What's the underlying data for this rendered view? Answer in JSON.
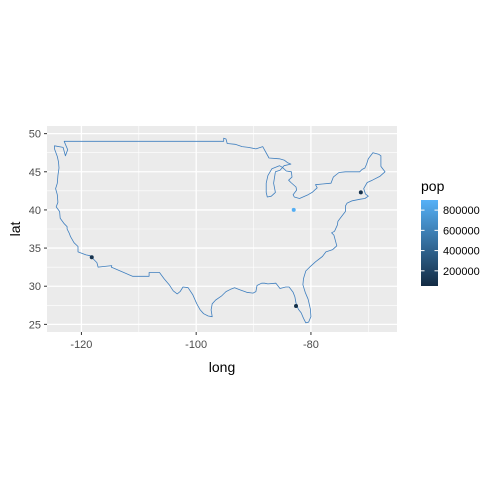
{
  "chart_data": {
    "type": "scatter",
    "title": "",
    "xlabel": "long",
    "ylabel": "lat",
    "xlim": [
      -126,
      -65
    ],
    "ylim": [
      24,
      51
    ],
    "x_ticks": [
      -120,
      -100,
      -80
    ],
    "x_tick_labels": [
      "-120",
      "-100",
      "-80"
    ],
    "y_ticks": [
      25,
      30,
      35,
      40,
      45,
      50
    ],
    "y_tick_labels": [
      "25",
      "30",
      "35",
      "40",
      "45",
      "50"
    ],
    "grid": true,
    "panel_background": "#ebebeb",
    "outline_color": "#3f7fbf",
    "base_layer": "US contiguous states outline",
    "points": [
      {
        "long": -118.2,
        "lat": 33.8,
        "pop": 100000
      },
      {
        "long": -82.6,
        "lat": 27.4,
        "pop": 80000
      },
      {
        "long": -83.0,
        "lat": 40.0,
        "pop": 880000
      },
      {
        "long": -71.3,
        "lat": 42.3,
        "pop": 90000
      }
    ],
    "legend": {
      "title": "pop",
      "placement": "right",
      "breaks": [
        200000,
        400000,
        600000,
        800000
      ],
      "labels": [
        "200000",
        "400000",
        "600000",
        "800000"
      ],
      "range": [
        50000,
        900000
      ],
      "color_low": "#132b43",
      "color_high": "#56b1f7"
    }
  }
}
